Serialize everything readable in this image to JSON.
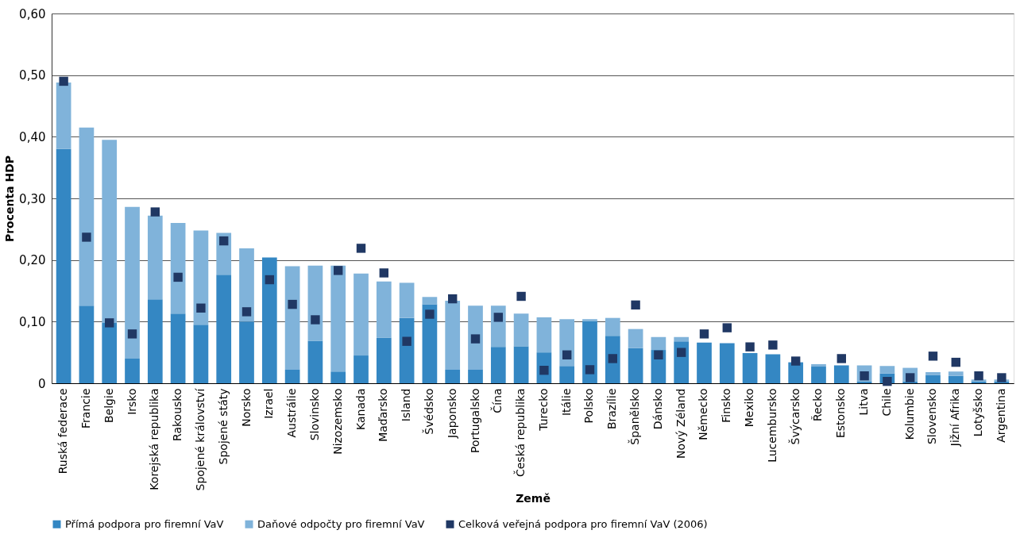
{
  "chart_data": {
    "type": "bar",
    "stacked": true,
    "xlabel": "Země",
    "ylabel": "Procenta HDP",
    "categories": [
      "Ruská federace",
      "Francie",
      "Belgie",
      "Irsko",
      "Korejská republika",
      "Rakousko",
      "Spojené království",
      "Spojené státy",
      "Norsko",
      "Izrael",
      "Austrálie",
      "Slovinsko",
      "Nizozemsko",
      "Kanada",
      "Maďarsko",
      "Island",
      "Švédsko",
      "Japonsko",
      "Portugalsko",
      "Čína",
      "Česká republika",
      "Turecko",
      "Itálie",
      "Polsko",
      "Brazílie",
      "Španělsko",
      "Dánsko",
      "Nový Zéland",
      "Německo",
      "Finsko",
      "Mexiko",
      "Lucembursko",
      "Švýcarsko",
      "Řecko",
      "Estonsko",
      "Litva",
      "Chile",
      "Kolumbie",
      "Slovensko",
      "Jižní Afrika",
      "Lotyšsko",
      "Argentina"
    ],
    "series": [
      {
        "name": "Přímá podpora pro firemní VaV",
        "color": "#3487c3",
        "values": [
          0.38,
          0.126,
          0.098,
          0.04,
          0.136,
          0.113,
          0.095,
          0.176,
          0.1,
          0.204,
          0.022,
          0.069,
          0.019,
          0.045,
          0.074,
          0.106,
          0.128,
          0.022,
          0.022,
          0.059,
          0.06,
          0.05,
          0.028,
          0.101,
          0.077,
          0.057,
          0.054,
          0.068,
          0.066,
          0.065,
          0.049,
          0.047,
          0.034,
          0.027,
          0.029,
          0.003,
          0.016,
          0.003,
          0.013,
          0.012,
          0.003,
          0.003
        ]
      },
      {
        "name": "Daňové odpočty pro firemní VaV",
        "color": "#80b3da",
        "values": [
          0.108,
          0.289,
          0.297,
          0.246,
          0.136,
          0.147,
          0.153,
          0.068,
          0.119,
          0,
          0.168,
          0.122,
          0.172,
          0.133,
          0.091,
          0.057,
          0.012,
          0.112,
          0.104,
          0.067,
          0.053,
          0.057,
          0.076,
          0.003,
          0.029,
          0.031,
          0.021,
          0.007,
          0,
          0,
          0,
          0,
          0,
          0.004,
          0,
          0.026,
          0.012,
          0.022,
          0.005,
          0.007,
          0.003,
          0.003
        ]
      },
      {
        "name": "Celková veřejná podpora pro firemní VaV (2006)",
        "color": "#203864",
        "type": "scatter",
        "marker": "square",
        "values": [
          0.49,
          0.237,
          0.098,
          0.08,
          0.278,
          0.172,
          0.122,
          0.231,
          0.116,
          0.168,
          0.128,
          0.103,
          0.183,
          0.219,
          0.179,
          0.068,
          0.112,
          0.137,
          0.072,
          0.107,
          0.141,
          0.021,
          0.046,
          0.022,
          0.04,
          0.127,
          0.046,
          0.05,
          0.08,
          0.09,
          0.059,
          0.062,
          0.036,
          null,
          0.04,
          0.012,
          0.003,
          0.009,
          0.044,
          0.034,
          0.012,
          0.009
        ]
      }
    ],
    "ylim": [
      0,
      0.6
    ],
    "yticks": [
      0,
      {
        "value": 0.1,
        "label": "0,10"
      },
      {
        "value": 0.2,
        "label": "0,20"
      },
      {
        "value": 0.3,
        "label": "0,30"
      },
      {
        "value": 0.4,
        "label": "0,40"
      },
      {
        "value": 0.5,
        "label": "0,50"
      },
      {
        "value": 0.6,
        "label": "0,60"
      }
    ],
    "grid": "y",
    "legend": "bottom"
  }
}
